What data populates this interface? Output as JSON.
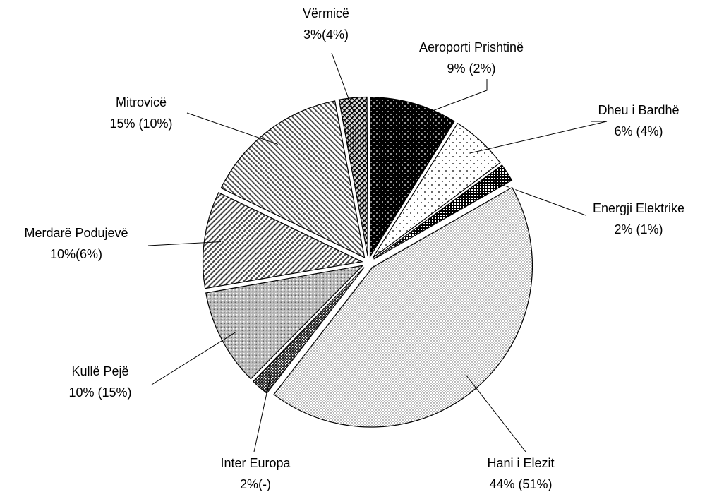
{
  "chart_data": {
    "type": "pie",
    "categories": [
      "Aeroporti Prishtinë",
      "Dheu i Bardhë",
      "Energji Elektrike",
      "Hani i Elezit",
      "Inter Europa",
      "Kullë Pejë",
      "Merdarë Podujevë",
      "Mitrovicë",
      "Vërmicë"
    ],
    "values": [
      9,
      6,
      2,
      44,
      2,
      10,
      10,
      15,
      3
    ],
    "value_labels": [
      "9% (2%)",
      "6% (4%)",
      "2% (1%)",
      "44% (51%)",
      "2%(-)",
      "10% (15%)",
      "10%(6%)",
      "15% (10%)",
      "3%(4%)"
    ]
  }
}
